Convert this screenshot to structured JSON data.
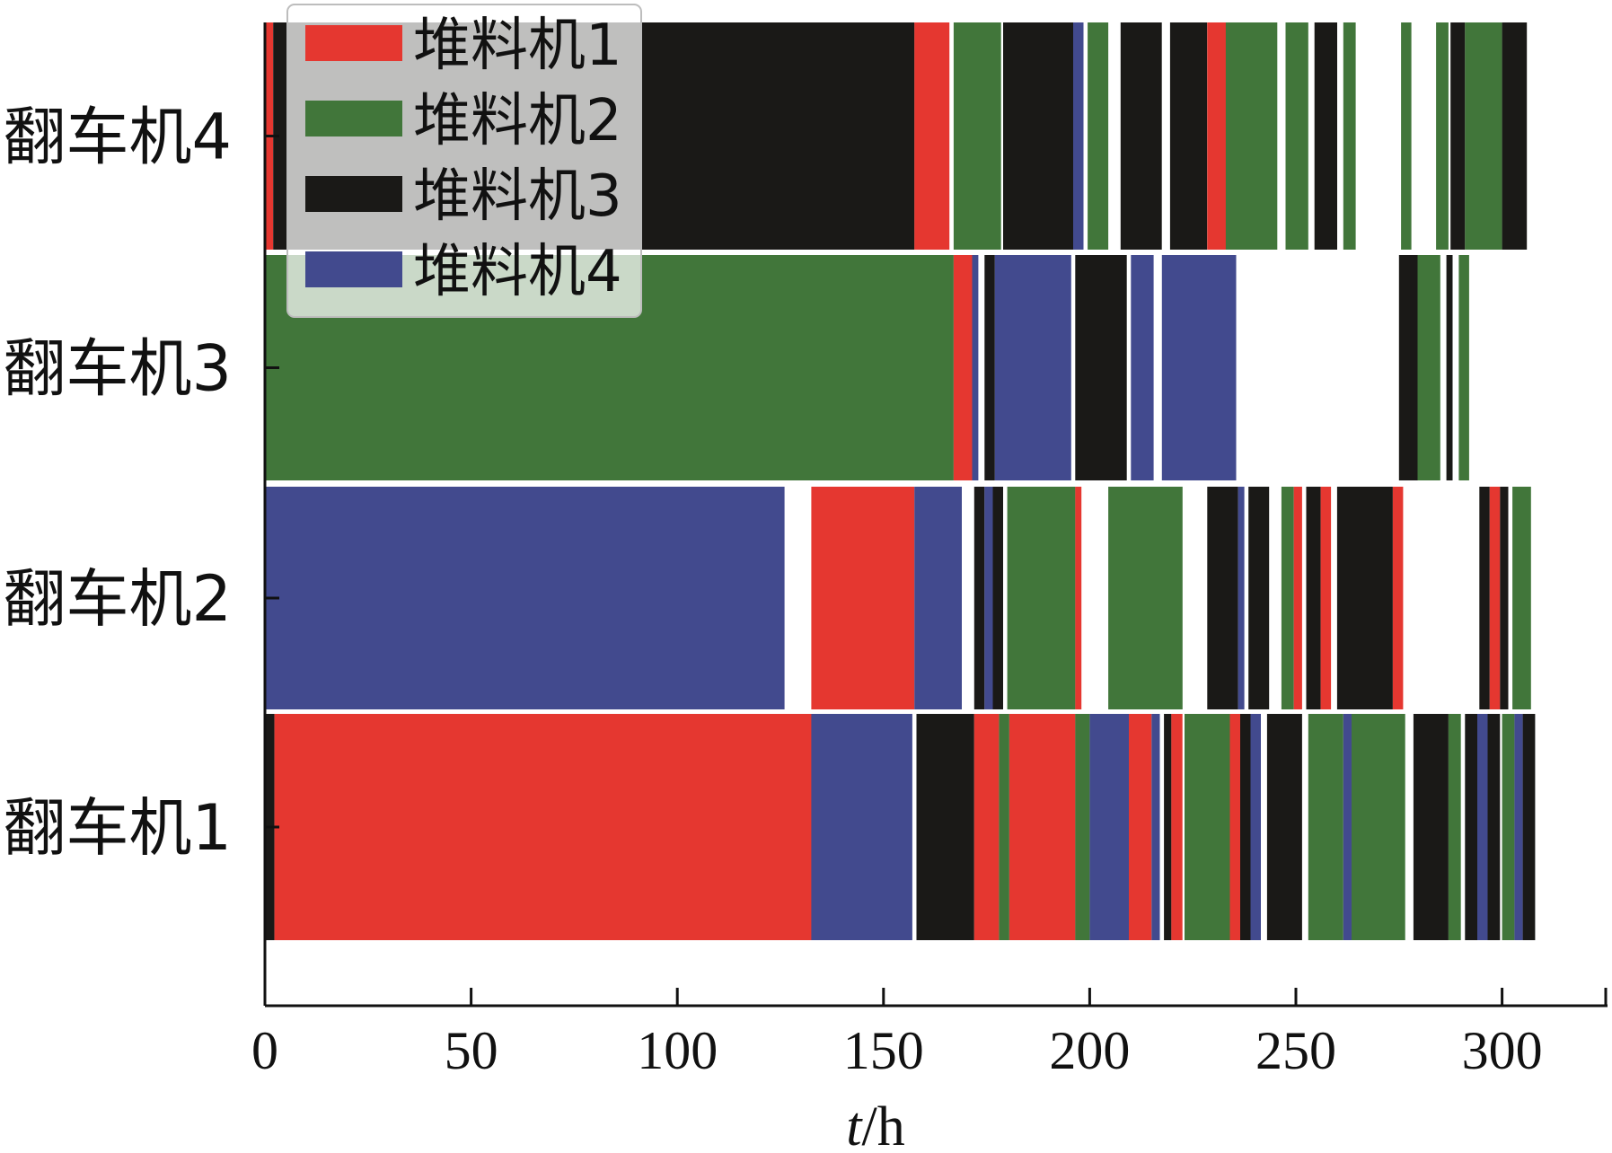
{
  "chart_data": {
    "type": "bar",
    "orientation": "horizontal-gantt",
    "title": "",
    "xlabel_italic": "t",
    "xlabel_rest": "/h",
    "xlim": [
      0,
      325
    ],
    "x_ticks": [
      0,
      50,
      100,
      150,
      200,
      250,
      300
    ],
    "categories": [
      "翻车机1",
      "翻车机2",
      "翻车机3",
      "翻车机4"
    ],
    "legend": {
      "placement": "top-left",
      "entries": [
        {
          "name": "堆料机1",
          "color": "#e53730"
        },
        {
          "name": "堆料机2",
          "color": "#41763a"
        },
        {
          "name": "堆料机3",
          "color": "#1a1917"
        },
        {
          "name": "堆料机4",
          "color": "#424a8e"
        }
      ]
    },
    "series": [
      {
        "category": "翻车机1",
        "segments": [
          {
            "start": 0,
            "end": 2.3,
            "stacker": 3
          },
          {
            "start": 2.3,
            "end": 132.5,
            "stacker": 1
          },
          {
            "start": 132.5,
            "end": 157,
            "stacker": 4
          },
          {
            "start": 158,
            "end": 172,
            "stacker": 3
          },
          {
            "start": 172,
            "end": 178,
            "stacker": 1
          },
          {
            "start": 178,
            "end": 180.5,
            "stacker": 2
          },
          {
            "start": 180.5,
            "end": 196.5,
            "stacker": 1
          },
          {
            "start": 196.5,
            "end": 200,
            "stacker": 2
          },
          {
            "start": 200,
            "end": 209.5,
            "stacker": 4
          },
          {
            "start": 209.5,
            "end": 215,
            "stacker": 1
          },
          {
            "start": 215,
            "end": 217,
            "stacker": 4
          },
          {
            "start": 218,
            "end": 219.8,
            "stacker": 3
          },
          {
            "start": 219.8,
            "end": 222.5,
            "stacker": 1
          },
          {
            "start": 223,
            "end": 234,
            "stacker": 2
          },
          {
            "start": 234,
            "end": 236.5,
            "stacker": 1
          },
          {
            "start": 236.5,
            "end": 239,
            "stacker": 3
          },
          {
            "start": 239,
            "end": 241.5,
            "stacker": 4
          },
          {
            "start": 243,
            "end": 251.5,
            "stacker": 3
          },
          {
            "start": 253,
            "end": 261.5,
            "stacker": 2
          },
          {
            "start": 261.5,
            "end": 263.5,
            "stacker": 4
          },
          {
            "start": 263.5,
            "end": 276.5,
            "stacker": 2
          },
          {
            "start": 278.5,
            "end": 287,
            "stacker": 3
          },
          {
            "start": 287,
            "end": 290,
            "stacker": 2
          },
          {
            "start": 291,
            "end": 294,
            "stacker": 3
          },
          {
            "start": 294,
            "end": 296.5,
            "stacker": 4
          },
          {
            "start": 296.5,
            "end": 299.5,
            "stacker": 3
          },
          {
            "start": 300,
            "end": 303,
            "stacker": 2
          },
          {
            "start": 303,
            "end": 305,
            "stacker": 4
          },
          {
            "start": 305,
            "end": 308,
            "stacker": 3
          }
        ]
      },
      {
        "category": "翻车机2",
        "segments": [
          {
            "start": 0,
            "end": 126,
            "stacker": 4
          },
          {
            "start": 132.5,
            "end": 157.5,
            "stacker": 1
          },
          {
            "start": 157.5,
            "end": 169,
            "stacker": 4
          },
          {
            "start": 172,
            "end": 174.5,
            "stacker": 3
          },
          {
            "start": 174.5,
            "end": 176.5,
            "stacker": 4
          },
          {
            "start": 176.5,
            "end": 179,
            "stacker": 3
          },
          {
            "start": 180,
            "end": 196.5,
            "stacker": 2
          },
          {
            "start": 196.5,
            "end": 198,
            "stacker": 1
          },
          {
            "start": 204.5,
            "end": 222.5,
            "stacker": 2
          },
          {
            "start": 228.5,
            "end": 236,
            "stacker": 3
          },
          {
            "start": 236,
            "end": 237.5,
            "stacker": 4
          },
          {
            "start": 238.5,
            "end": 243.5,
            "stacker": 3
          },
          {
            "start": 246.5,
            "end": 249.5,
            "stacker": 2
          },
          {
            "start": 249.5,
            "end": 251.5,
            "stacker": 1
          },
          {
            "start": 252.5,
            "end": 256,
            "stacker": 3
          },
          {
            "start": 256,
            "end": 258.5,
            "stacker": 1
          },
          {
            "start": 260,
            "end": 273.5,
            "stacker": 3
          },
          {
            "start": 273.5,
            "end": 276,
            "stacker": 1
          },
          {
            "start": 294.5,
            "end": 297,
            "stacker": 3
          },
          {
            "start": 297,
            "end": 299.5,
            "stacker": 1
          },
          {
            "start": 299.5,
            "end": 301.5,
            "stacker": 3
          },
          {
            "start": 302.5,
            "end": 307,
            "stacker": 2
          }
        ]
      },
      {
        "category": "翻车机3",
        "segments": [
          {
            "start": 0,
            "end": 167,
            "stacker": 2
          },
          {
            "start": 167,
            "end": 171.5,
            "stacker": 1
          },
          {
            "start": 171.5,
            "end": 173,
            "stacker": 4
          },
          {
            "start": 174.5,
            "end": 177,
            "stacker": 3
          },
          {
            "start": 177,
            "end": 195.5,
            "stacker": 4
          },
          {
            "start": 196.5,
            "end": 209,
            "stacker": 3
          },
          {
            "start": 210,
            "end": 215.5,
            "stacker": 4
          },
          {
            "start": 217.5,
            "end": 235.5,
            "stacker": 4
          },
          {
            "start": 275,
            "end": 279.5,
            "stacker": 3
          },
          {
            "start": 279.5,
            "end": 285,
            "stacker": 2
          },
          {
            "start": 286.5,
            "end": 288,
            "stacker": 3
          },
          {
            "start": 289.5,
            "end": 292,
            "stacker": 2
          }
        ]
      },
      {
        "category": "翻车机4",
        "segments": [
          {
            "start": 0,
            "end": 2,
            "stacker": 1
          },
          {
            "start": 2,
            "end": 157.5,
            "stacker": 3
          },
          {
            "start": 157.5,
            "end": 166,
            "stacker": 1
          },
          {
            "start": 167,
            "end": 178.5,
            "stacker": 2
          },
          {
            "start": 179,
            "end": 196,
            "stacker": 3
          },
          {
            "start": 196,
            "end": 198.5,
            "stacker": 4
          },
          {
            "start": 199.5,
            "end": 204.5,
            "stacker": 2
          },
          {
            "start": 207.5,
            "end": 217.5,
            "stacker": 3
          },
          {
            "start": 219.5,
            "end": 228.5,
            "stacker": 3
          },
          {
            "start": 228.5,
            "end": 233,
            "stacker": 1
          },
          {
            "start": 233,
            "end": 245.5,
            "stacker": 2
          },
          {
            "start": 247.5,
            "end": 253,
            "stacker": 2
          },
          {
            "start": 254.5,
            "end": 260,
            "stacker": 3
          },
          {
            "start": 261.5,
            "end": 264.5,
            "stacker": 2
          },
          {
            "start": 275.5,
            "end": 278,
            "stacker": 2
          },
          {
            "start": 284,
            "end": 287,
            "stacker": 2
          },
          {
            "start": 287.5,
            "end": 291,
            "stacker": 3
          },
          {
            "start": 291,
            "end": 300,
            "stacker": 2
          },
          {
            "start": 300,
            "end": 306,
            "stacker": 3
          }
        ]
      }
    ]
  }
}
